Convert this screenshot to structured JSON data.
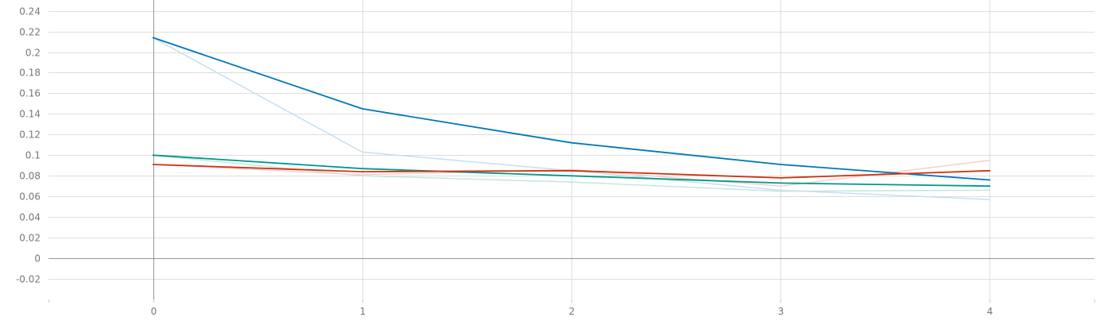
{
  "chart_data": {
    "type": "line",
    "x": [
      0,
      1,
      2,
      3,
      4
    ],
    "xlim": [
      -0.5,
      4.5
    ],
    "ylim": [
      -0.04,
      0.25
    ],
    "x_ticks": [
      {
        "value": 0,
        "label": "0"
      },
      {
        "value": 1,
        "label": "1"
      },
      {
        "value": 2,
        "label": "2"
      },
      {
        "value": 3,
        "label": "3"
      },
      {
        "value": 4,
        "label": "4"
      }
    ],
    "y_ticks": [
      {
        "value": -0.02,
        "label": "-0.02"
      },
      {
        "value": 0,
        "label": "0"
      },
      {
        "value": 0.02,
        "label": "0.02"
      },
      {
        "value": 0.04,
        "label": "0.04"
      },
      {
        "value": 0.06,
        "label": "0.06"
      },
      {
        "value": 0.08,
        "label": "0.08"
      },
      {
        "value": 0.1,
        "label": "0.1"
      },
      {
        "value": 0.12,
        "label": "0.12"
      },
      {
        "value": 0.14,
        "label": "0.14"
      },
      {
        "value": 0.16,
        "label": "0.16"
      },
      {
        "value": 0.18,
        "label": "0.18"
      },
      {
        "value": 0.2,
        "label": "0.2"
      },
      {
        "value": 0.22,
        "label": "0.22"
      },
      {
        "value": 0.24,
        "label": "0.24"
      }
    ],
    "grid": true,
    "title": "",
    "xlabel": "",
    "ylabel": "",
    "series": [
      {
        "key": "blue-raw",
        "color": "#c6dff0",
        "values": [
          0.214,
          0.103,
          0.085,
          0.066,
          0.057
        ]
      },
      {
        "key": "teal-raw",
        "color": "#c4e6e1",
        "values": [
          0.1,
          0.08,
          0.074,
          0.065,
          0.066
        ]
      },
      {
        "key": "red-raw",
        "color": "#f3d0cb",
        "values": [
          0.091,
          0.081,
          0.086,
          0.07,
          0.095
        ]
      },
      {
        "key": "blue-smoothed",
        "color": "#0077bb",
        "values": [
          0.214,
          0.145,
          0.112,
          0.091,
          0.076
        ]
      },
      {
        "key": "teal-smoothed",
        "color": "#009988",
        "values": [
          0.1,
          0.087,
          0.08,
          0.073,
          0.07
        ]
      },
      {
        "key": "red-smoothed",
        "color": "#cc3311",
        "values": [
          0.091,
          0.084,
          0.085,
          0.078,
          0.085
        ]
      }
    ]
  }
}
